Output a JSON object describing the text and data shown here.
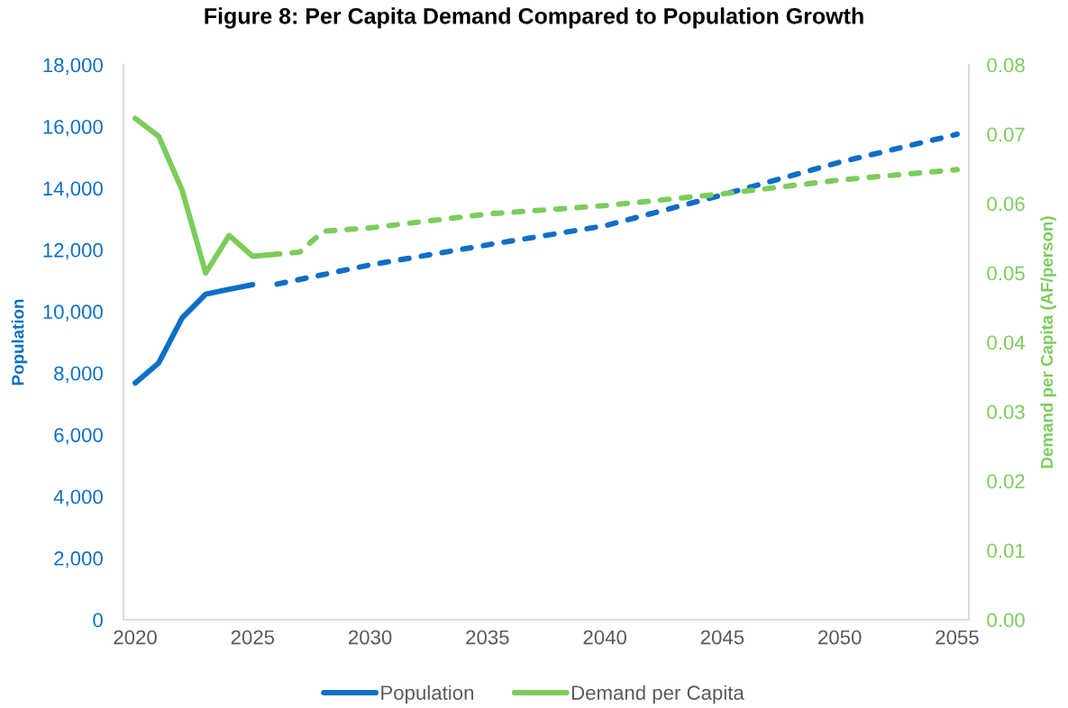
{
  "chart_data": {
    "type": "line",
    "title": "Figure 8: Per Capita Demand Compared to Population Growth",
    "ylabel": "Population",
    "y2label": "Demand per Capita (AF/person)",
    "legend": "bottom",
    "xlim": [
      2019.5,
      2055.5
    ],
    "xticks": [
      2020,
      2025,
      2030,
      2035,
      2040,
      2045,
      2050,
      2055
    ],
    "ylim": [
      0,
      18000
    ],
    "yticks": [
      {
        "value": 0,
        "label": "0"
      },
      {
        "value": 2000,
        "label": "2,000"
      },
      {
        "value": 4000,
        "label": "4,000"
      },
      {
        "value": 6000,
        "label": "6,000"
      },
      {
        "value": 8000,
        "label": "8,000"
      },
      {
        "value": 10000,
        "label": "10,000"
      },
      {
        "value": 12000,
        "label": "12,000"
      },
      {
        "value": 14000,
        "label": "14,000"
      },
      {
        "value": 16000,
        "label": "16,000"
      },
      {
        "value": 18000,
        "label": "18,000"
      }
    ],
    "y2lim": [
      0,
      0.08
    ],
    "y2ticks": [
      {
        "value": 0,
        "label": "0.00"
      },
      {
        "value": 0.01,
        "label": "0.01"
      },
      {
        "value": 0.02,
        "label": "0.02"
      },
      {
        "value": 0.03,
        "label": "0.03"
      },
      {
        "value": 0.04,
        "label": "0.04"
      },
      {
        "value": 0.05,
        "label": "0.05"
      },
      {
        "value": 0.06,
        "label": "0.06"
      },
      {
        "value": 0.07,
        "label": "0.07"
      },
      {
        "value": 0.08,
        "label": "0.08"
      }
    ],
    "series": [
      {
        "name": "Population",
        "color": "#0f6fc6",
        "line_style": "solid",
        "x": [
          2020,
          2021,
          2022,
          2023,
          2024,
          2025
        ],
        "values": [
          7680,
          8330,
          9790,
          10560,
          10720,
          10870
        ]
      },
      {
        "color": "#0f6fc6",
        "line_style": "dashed",
        "x": [
          2026,
          2030,
          2035,
          2040,
          2045,
          2050,
          2055
        ],
        "values": [
          10880,
          11510,
          12160,
          12780,
          13780,
          14840,
          15750
        ]
      },
      {
        "name": "Demand per Capita",
        "color": "#7ccc5c",
        "axis": "y2",
        "line_style": "solid",
        "x": [
          2020,
          2021,
          2022,
          2023,
          2024,
          2025,
          2026
        ],
        "values": [
          0.0723,
          0.0697,
          0.0619,
          0.05,
          0.0554,
          0.0524,
          0.0527
        ]
      },
      {
        "color": "#7ccc5c",
        "axis": "y2",
        "line_style": "dashed",
        "x": [
          2026,
          2027,
          2028,
          2030,
          2035,
          2040,
          2045,
          2050,
          2055
        ],
        "values": [
          0.0527,
          0.053,
          0.056,
          0.0565,
          0.0585,
          0.0597,
          0.0614,
          0.0634,
          0.0649
        ]
      }
    ]
  }
}
